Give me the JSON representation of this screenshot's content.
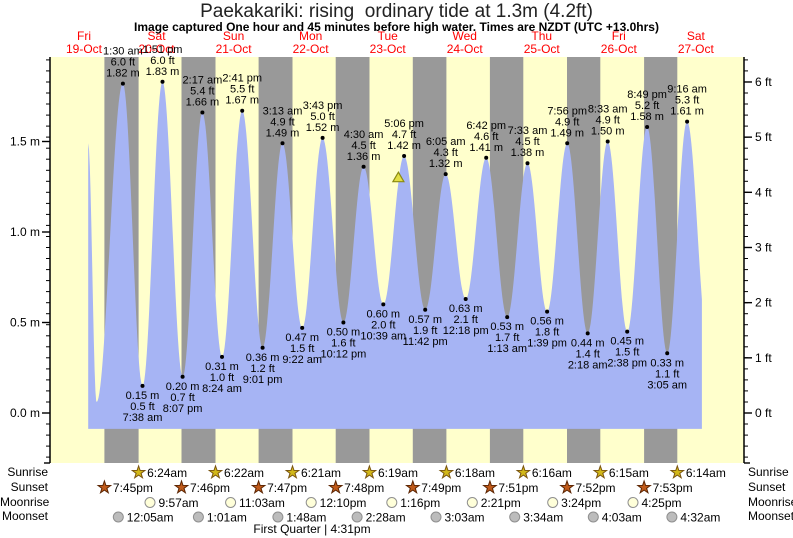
{
  "title": "Paekakariki: rising  ordinary tide at 1.3m (4.2ft)",
  "subtitle": "Image captured One hour and 45 minutes before high water. Times are NZDT (UTC +13.0hrs)",
  "moon_phase_note": "First Quarter | 4:31pm",
  "rows": {
    "sunrise": {
      "label": "Sunrise"
    },
    "sunset": {
      "label": "Sunset"
    },
    "moonrise": {
      "label": "Moonrise"
    },
    "moonset": {
      "label": "Moonset"
    }
  },
  "colors": {
    "day_band": "#ffffcc",
    "night_band": "#999999",
    "water": "#a6b4f4",
    "axis": "#000000",
    "day_label": "#ff0000",
    "text": "#000000",
    "dot": "#000000",
    "sunrise_star": "#d2b819",
    "sunrise_star_border": "#7a5510",
    "sunset_star": "#c05a1a",
    "sunset_star_border": "#5c2604",
    "moonrise_circle": "#ffffd9",
    "moonrise_circle_border": "#8f8f8f",
    "moonset_circle": "#bcbcbc",
    "moonset_circle_border": "#8f8f8f",
    "marker_fill": "#e3df45",
    "marker_border": "#8a8a12"
  },
  "chart_data": {
    "type": "area",
    "title": "Paekakariki: rising ordinary tide at 1.3m (4.2ft)",
    "timezone_note": "Times are NZDT (UTC +13.0hrs)",
    "x_axis_days": [
      {
        "label": "Fri",
        "date": "19-Oct"
      },
      {
        "label": "Sat",
        "date": "20-Oct"
      },
      {
        "label": "Sun",
        "date": "21-Oct"
      },
      {
        "label": "Mon",
        "date": "22-Oct"
      },
      {
        "label": "Tue",
        "date": "23-Oct"
      },
      {
        "label": "Wed",
        "date": "24-Oct"
      },
      {
        "label": "Thu",
        "date": "25-Oct"
      },
      {
        "label": "Fri",
        "date": "26-Oct"
      },
      {
        "label": "Sat",
        "date": "27-Oct"
      }
    ],
    "y_axis_left": {
      "unit": "m",
      "ticks": [
        0,
        0.5,
        1.0,
        1.5
      ],
      "labels": [
        "0.0 m",
        "0.5 m",
        "1.0 m",
        "1.5 m"
      ]
    },
    "y_axis_right": {
      "unit": "ft",
      "ticks": [
        0,
        1,
        2,
        3,
        4,
        5,
        6
      ],
      "labels": [
        "0 ft",
        "1 ft",
        "2 ft",
        "3 ft",
        "4 ft",
        "5 ft",
        "6 ft"
      ]
    },
    "series_t_range": [
      14.7,
      205.9
    ],
    "water_bottom_m": -0.088,
    "tide_events": [
      {
        "kind": "high",
        "t": 14.7,
        "height_m": 1.49,
        "labeled": false,
        "labels": []
      },
      {
        "kind": "low",
        "t": 17.3,
        "height_m": 0.06,
        "labeled": false,
        "labels": []
      },
      {
        "kind": "high",
        "t": 25.5,
        "height_m": 1.82,
        "labeled": true,
        "labels": [
          "1:30 am",
          "6.0 ft",
          "1.82 m"
        ]
      },
      {
        "kind": "low",
        "t": 31.63,
        "height_m": 0.15,
        "labeled": true,
        "labels": [
          "0.15 m",
          "0.5 ft",
          "7:38 am"
        ]
      },
      {
        "kind": "high",
        "t": 37.85,
        "height_m": 1.83,
        "labeled": true,
        "labels": [
          "1:51 pm",
          "6.0 ft",
          "1.83 m"
        ]
      },
      {
        "kind": "low",
        "t": 44.12,
        "height_m": 0.2,
        "labeled": true,
        "labels": [
          "0.20 m",
          "0.7 ft",
          "8:07 pm"
        ]
      },
      {
        "kind": "high",
        "t": 50.28,
        "height_m": 1.66,
        "labeled": true,
        "labels": [
          "2:17 am",
          "5.4 ft",
          "1.66 m"
        ]
      },
      {
        "kind": "low",
        "t": 56.4,
        "height_m": 0.31,
        "labeled": true,
        "labels": [
          "0.31 m",
          "1.0 ft",
          "8:24 am"
        ]
      },
      {
        "kind": "high",
        "t": 62.68,
        "height_m": 1.67,
        "labeled": true,
        "labels": [
          "2:41 pm",
          "5.5 ft",
          "1.67 m"
        ]
      },
      {
        "kind": "low",
        "t": 69.02,
        "height_m": 0.36,
        "labeled": true,
        "labels": [
          "0.36 m",
          "1.2 ft",
          "9:01 pm"
        ]
      },
      {
        "kind": "high",
        "t": 75.22,
        "height_m": 1.49,
        "labeled": true,
        "labels": [
          "3:13 am",
          "4.9 ft",
          "1.49 m"
        ]
      },
      {
        "kind": "low",
        "t": 81.37,
        "height_m": 0.47,
        "labeled": true,
        "labels": [
          "0.47 m",
          "1.5 ft",
          "9:22 am"
        ]
      },
      {
        "kind": "high",
        "t": 87.72,
        "height_m": 1.52,
        "labeled": true,
        "labels": [
          "3:43 pm",
          "5.0 ft",
          "1.52 m"
        ]
      },
      {
        "kind": "low",
        "t": 94.2,
        "height_m": 0.5,
        "labeled": true,
        "labels": [
          "0.50 m",
          "1.6 ft",
          "10:12 pm"
        ]
      },
      {
        "kind": "high",
        "t": 100.5,
        "height_m": 1.36,
        "labeled": true,
        "labels": [
          "4:30 am",
          "4.5 ft",
          "1.36 m"
        ]
      },
      {
        "kind": "low",
        "t": 106.65,
        "height_m": 0.6,
        "labeled": true,
        "labels": [
          "0.60 m",
          "2.0 ft",
          "10:39 am"
        ]
      },
      {
        "kind": "high",
        "t": 113.1,
        "height_m": 1.42,
        "labeled": true,
        "labels": [
          "5:06 pm",
          "4.7 ft",
          "1.42 m"
        ]
      },
      {
        "kind": "low",
        "t": 119.7,
        "height_m": 0.57,
        "labeled": true,
        "labels": [
          "0.57 m",
          "1.9 ft",
          "11:42 pm"
        ]
      },
      {
        "kind": "high",
        "t": 126.08,
        "height_m": 1.32,
        "labeled": true,
        "labels": [
          "6:05 am",
          "4.3 ft",
          "1.32 m"
        ]
      },
      {
        "kind": "low",
        "t": 132.3,
        "height_m": 0.63,
        "labeled": true,
        "labels": [
          "0.63 m",
          "2.1 ft",
          "12:18 pm"
        ]
      },
      {
        "kind": "high",
        "t": 138.7,
        "height_m": 1.41,
        "labeled": true,
        "labels": [
          "6:42 pm",
          "4.6 ft",
          "1.41 m"
        ]
      },
      {
        "kind": "low",
        "t": 145.22,
        "height_m": 0.53,
        "labeled": true,
        "labels": [
          "0.53 m",
          "1.7 ft",
          "1:13 am"
        ]
      },
      {
        "kind": "high",
        "t": 151.55,
        "height_m": 1.38,
        "labeled": true,
        "labels": [
          "7:33 am",
          "4.5 ft",
          "1.38 m"
        ]
      },
      {
        "kind": "low",
        "t": 157.65,
        "height_m": 0.56,
        "labeled": true,
        "labels": [
          "0.56 m",
          "1.8 ft",
          "1:39 pm"
        ]
      },
      {
        "kind": "high",
        "t": 163.93,
        "height_m": 1.49,
        "labeled": true,
        "labels": [
          "7:56 pm",
          "4.9 ft",
          "1.49 m"
        ]
      },
      {
        "kind": "low",
        "t": 170.3,
        "height_m": 0.44,
        "labeled": true,
        "labels": [
          "0.44 m",
          "1.4 ft",
          "2:18 am"
        ]
      },
      {
        "kind": "high",
        "t": 176.55,
        "height_m": 1.5,
        "labeled": true,
        "labels": [
          "8:33 am",
          "4.9 ft",
          "1.50 m"
        ]
      },
      {
        "kind": "low",
        "t": 182.63,
        "height_m": 0.45,
        "labeled": true,
        "labels": [
          "0.45 m",
          "1.5 ft",
          "2:38 pm"
        ]
      },
      {
        "kind": "high",
        "t": 188.82,
        "height_m": 1.58,
        "labeled": true,
        "labels": [
          "8:49 pm",
          "5.2 ft",
          "1.58 m"
        ]
      },
      {
        "kind": "low",
        "t": 195.08,
        "height_m": 0.33,
        "labeled": true,
        "labels": [
          "0.33 m",
          "1.1 ft",
          "3:05 am"
        ]
      },
      {
        "kind": "high",
        "t": 201.27,
        "height_m": 1.61,
        "labeled": true,
        "labels": [
          "9:16 am",
          "5.3 ft",
          "1.61 m"
        ]
      },
      {
        "kind": "low",
        "t": 207.75,
        "height_m": 0.4,
        "labeled": false,
        "labels": []
      }
    ],
    "current_time_marker": {
      "t": 111.35,
      "height_m": 1.3
    },
    "sun_moon": {
      "sunrise": {
        "events": [
          {
            "t": 30.4,
            "label": "6:24am"
          },
          {
            "t": 54.37,
            "label": "6:22am"
          },
          {
            "t": 78.35,
            "label": "6:21am"
          },
          {
            "t": 102.32,
            "label": "6:19am"
          },
          {
            "t": 126.3,
            "label": "6:18am"
          },
          {
            "t": 150.27,
            "label": "6:16am"
          },
          {
            "t": 174.25,
            "label": "6:15am"
          },
          {
            "t": 198.23,
            "label": "6:14am"
          }
        ]
      },
      "sunset": {
        "events": [
          {
            "t": 19.75,
            "label": "7:45pm"
          },
          {
            "t": 43.77,
            "label": "7:46pm"
          },
          {
            "t": 67.78,
            "label": "7:47pm"
          },
          {
            "t": 91.8,
            "label": "7:48pm"
          },
          {
            "t": 115.82,
            "label": "7:49pm"
          },
          {
            "t": 139.85,
            "label": "7:51pm"
          },
          {
            "t": 163.87,
            "label": "7:52pm"
          },
          {
            "t": 187.88,
            "label": "7:53pm"
          }
        ]
      },
      "moonrise": {
        "events": [
          {
            "t": 33.95,
            "label": "9:57am"
          },
          {
            "t": 59.05,
            "label": "11:03am"
          },
          {
            "t": 84.17,
            "label": "12:10pm"
          },
          {
            "t": 109.27,
            "label": "1:16pm"
          },
          {
            "t": 134.35,
            "label": "2:21pm"
          },
          {
            "t": 159.4,
            "label": "3:24pm"
          },
          {
            "t": 184.42,
            "label": "4:25pm"
          }
        ]
      },
      "moonset": {
        "events": [
          {
            "t": 24.08,
            "label": "12:05am"
          },
          {
            "t": 49.02,
            "label": "1:01am"
          },
          {
            "t": 73.8,
            "label": "1:48am"
          },
          {
            "t": 98.47,
            "label": "2:28am"
          },
          {
            "t": 123.05,
            "label": "3:03am"
          },
          {
            "t": 147.57,
            "label": "3:34am"
          },
          {
            "t": 172.05,
            "label": "4:03am"
          },
          {
            "t": 196.53,
            "label": "4:32am"
          }
        ]
      }
    }
  }
}
